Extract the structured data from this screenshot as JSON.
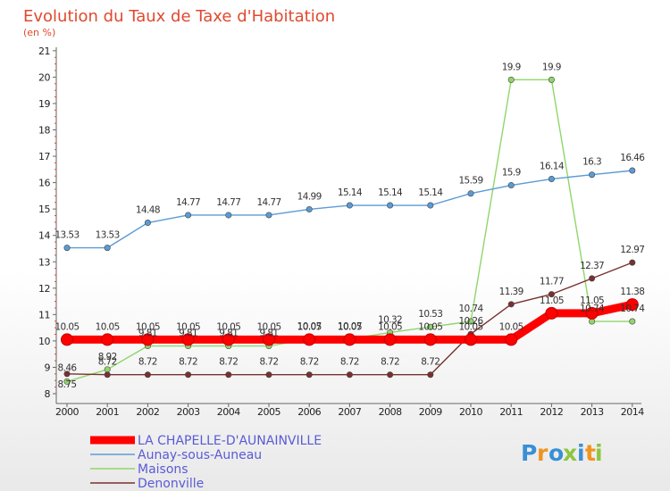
{
  "chart_data": {
    "type": "line",
    "title": "Evolution du Taux de Taxe d'Habitation",
    "subtitle": "(en %)",
    "x": [
      "2000",
      "2001",
      "2002",
      "2003",
      "2004",
      "2005",
      "2006",
      "2007",
      "2008",
      "2009",
      "2010",
      "2011",
      "2012",
      "2013",
      "2014"
    ],
    "ylim": [
      8,
      21
    ],
    "yticks": [
      "8",
      "9",
      "10",
      "11",
      "12",
      "13",
      "14",
      "15",
      "16",
      "17",
      "18",
      "19",
      "20",
      "21"
    ],
    "grid": false,
    "legend_position": "bottom-left",
    "series": [
      {
        "name": "LA CHAPELLE-D'AUNAINVILLE",
        "color": "#ff0000",
        "values": [
          10.05,
          10.05,
          10.05,
          10.05,
          10.05,
          10.05,
          10.05,
          10.05,
          10.05,
          10.05,
          10.05,
          10.05,
          11.05,
          11.05,
          11.38
        ],
        "labels": [
          "10.05",
          "10.05",
          "10.05",
          "10.05",
          "10.05",
          "10.05",
          "10.05",
          "10.05",
          "10.05",
          "10.05",
          "10.05",
          "10.05",
          "11.05",
          "11.05",
          "11.38"
        ]
      },
      {
        "name": "Aunay-sous-Auneau",
        "color": "#5b9bd5",
        "values": [
          13.53,
          13.53,
          14.48,
          14.77,
          14.77,
          14.77,
          14.99,
          15.14,
          15.14,
          15.14,
          15.59,
          15.9,
          16.14,
          16.3,
          16.46
        ],
        "labels": [
          "13.53",
          "13.53",
          "14.48",
          "14.77",
          "14.77",
          "14.77",
          "14.99",
          "15.14",
          "15.14",
          "15.14",
          "15.59",
          "15.9",
          "16.14",
          "16.3",
          "16.46"
        ]
      },
      {
        "name": "Maisons",
        "color": "#8fd66b",
        "values": [
          8.46,
          8.92,
          9.81,
          9.81,
          9.81,
          9.81,
          10.07,
          10.07,
          10.32,
          10.53,
          10.74,
          19.9,
          19.9,
          10.74,
          10.74
        ],
        "labels": [
          "8.46",
          "8.92",
          "9.81",
          "9.81",
          "9.81",
          "9.81",
          "10.07",
          "10.07",
          "10.32",
          "10.53",
          "10.74",
          "19.9",
          "19.9",
          "10.74",
          "10.74"
        ]
      },
      {
        "name": "Denonville",
        "color": "#7a3030",
        "values": [
          8.75,
          8.72,
          8.72,
          8.72,
          8.72,
          8.72,
          8.72,
          8.72,
          8.72,
          8.72,
          10.26,
          11.39,
          11.77,
          12.37,
          12.97
        ],
        "labels": [
          "8.75",
          "8.72",
          "8.72",
          "8.72",
          "8.72",
          "8.72",
          "8.72",
          "8.72",
          "8.72",
          "8.72",
          "10.26",
          "11.39",
          "11.77",
          "12.37",
          "12.97"
        ]
      }
    ]
  },
  "logo": {
    "text": "Proxiti",
    "letters": [
      "P",
      "r",
      "o",
      "x",
      "i",
      "t",
      "i"
    ],
    "colors": [
      "#3a8fd6",
      "#f0941e",
      "#3a8fd6",
      "#8cc63f",
      "#3a8fd6",
      "#f0941e",
      "#8cc63f"
    ]
  }
}
